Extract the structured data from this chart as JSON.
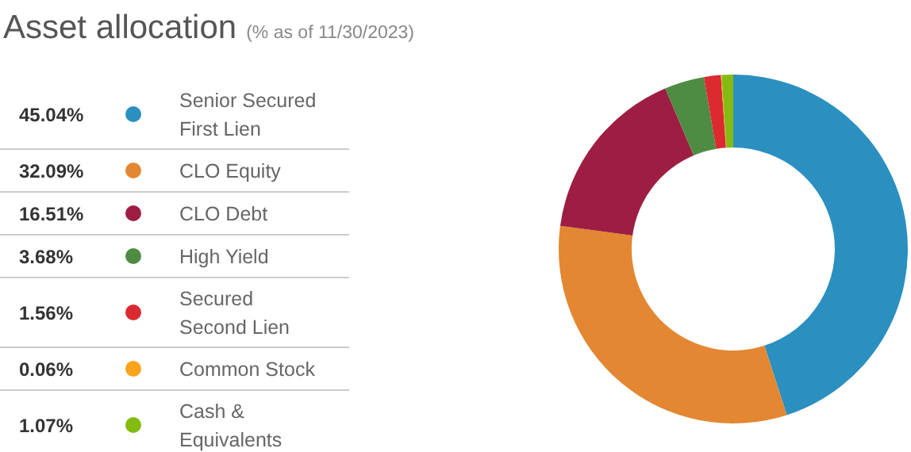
{
  "chart_data": {
    "type": "donut",
    "title": "Asset allocation",
    "subtitle": "(% as of 11/30/2023)",
    "categories": [
      "Senior Secured First Lien",
      "CLO Equity",
      "CLO Debt",
      "High Yield",
      "Secured Second Lien",
      "Common Stock",
      "Cash & Equivalents"
    ],
    "values": [
      45.04,
      32.09,
      16.51,
      3.68,
      1.56,
      0.06,
      1.07
    ],
    "colors": [
      "#2b8fc0",
      "#e38732",
      "#9d1e42",
      "#4e8c44",
      "#dc2a31",
      "#fba31d",
      "#84bb10"
    ],
    "value_labels": [
      "45.04%",
      "32.09%",
      "16.51%",
      "3.68%",
      "1.56%",
      "0.06%",
      "1.07%"
    ],
    "legend": "left"
  }
}
